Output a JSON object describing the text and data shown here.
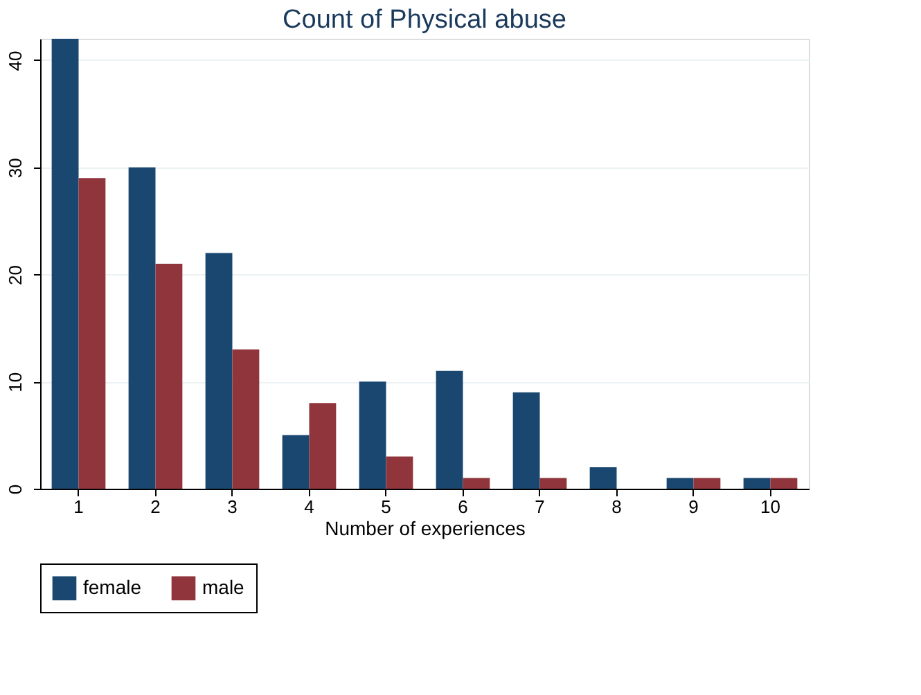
{
  "chart_data": {
    "type": "bar",
    "title": "Count of Physical abuse",
    "xlabel": "Number of experiences",
    "categories": [
      "1",
      "2",
      "3",
      "4",
      "5",
      "6",
      "7",
      "8",
      "9",
      "10"
    ],
    "series": [
      {
        "name": "female",
        "color": "#1a476f",
        "values": [
          42,
          30,
          22,
          5,
          10,
          11,
          9,
          2,
          1,
          1
        ]
      },
      {
        "name": "male",
        "color": "#90353b",
        "values": [
          29,
          21,
          13,
          8,
          3,
          1,
          1,
          0,
          1,
          1
        ]
      }
    ],
    "ylim": [
      0,
      42
    ],
    "yticks": [
      0,
      10,
      20,
      30,
      40
    ],
    "grid": "y",
    "legend": "bottom"
  }
}
